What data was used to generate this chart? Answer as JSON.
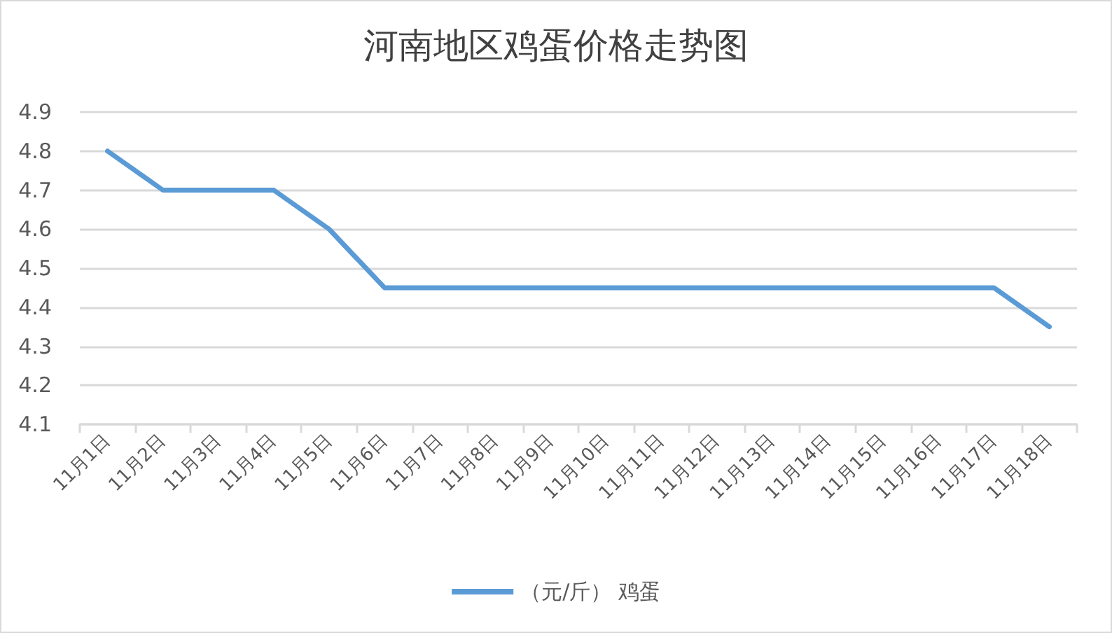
{
  "chart_data": {
    "type": "line",
    "title": "河南地区鸡蛋价格走势图",
    "categories": [
      "11月1日",
      "11月2日",
      "11月3日",
      "11月4日",
      "11月5日",
      "11月6日",
      "11月7日",
      "11月8日",
      "11月9日",
      "11月10日",
      "11月11日",
      "11月12日",
      "11月13日",
      "11月14日",
      "11月15日",
      "11月16日",
      "11月17日",
      "11月18日"
    ],
    "series": [
      {
        "name": "（元/斤） 鸡蛋",
        "color": "#5b9bd5",
        "values": [
          4.8,
          4.7,
          4.7,
          4.7,
          4.6,
          4.45,
          4.45,
          4.45,
          4.45,
          4.45,
          4.45,
          4.45,
          4.45,
          4.45,
          4.45,
          4.45,
          4.45,
          4.35
        ]
      }
    ],
    "ylim": [
      4.1,
      4.9
    ],
    "yticks": [
      4.1,
      4.2,
      4.3,
      4.4,
      4.5,
      4.6,
      4.7,
      4.8,
      4.9
    ],
    "grid": "y",
    "legend": "bottom",
    "marker": "none",
    "line_style": "solid"
  }
}
